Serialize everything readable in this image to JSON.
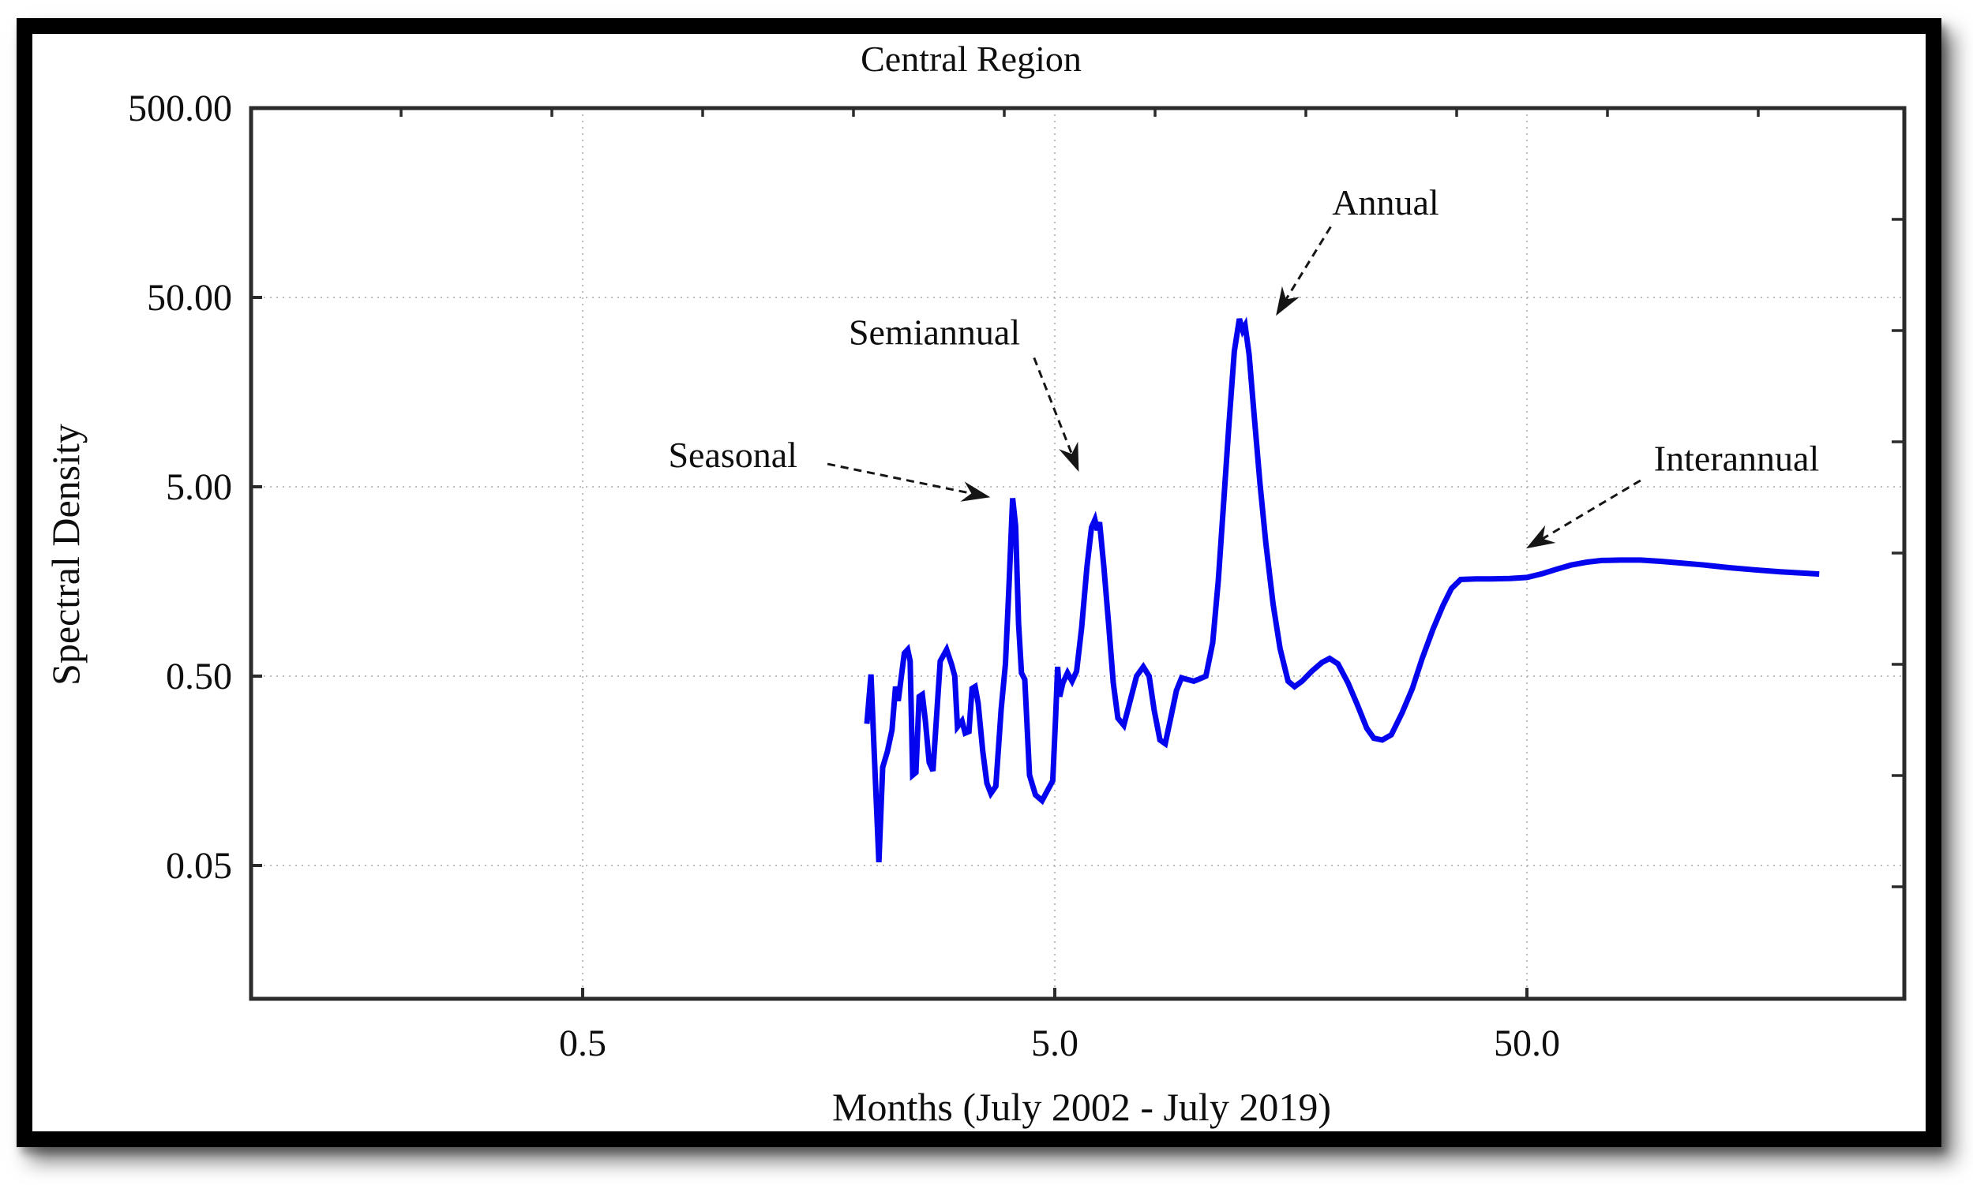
{
  "chart": {
    "title": "Central Region",
    "xlabel": "Months (July 2002 - July 2019)",
    "ylabel": "Spectral Density"
  },
  "chart_data": {
    "type": "line",
    "title": "Central Region",
    "xlabel": "Months (July 2002 - July 2019)",
    "ylabel": "Spectral Density",
    "x_scale": "log",
    "y_scale": "log",
    "xlim": [
      0.1,
      316
    ],
    "ylim": [
      0.01,
      500
    ],
    "grid": true,
    "x_ticks": [
      0.5,
      5.0,
      50.0
    ],
    "x_tick_labels": [
      "0.5",
      "5.0",
      "50.0"
    ],
    "y_ticks": [
      500,
      50,
      5,
      0.5,
      0.05
    ],
    "y_tick_labels": [
      "500.00",
      "50.00",
      "5.00",
      "0.50",
      "0.05"
    ],
    "line_color": "#0404ee",
    "series": [
      {
        "name": "spectral-density",
        "points": [
          [
            2.0,
            0.28
          ],
          [
            2.04,
            0.51
          ],
          [
            2.07,
            0.21
          ],
          [
            2.12,
            0.052
          ],
          [
            2.16,
            0.165
          ],
          [
            2.21,
            0.2
          ],
          [
            2.26,
            0.26
          ],
          [
            2.3,
            0.44
          ],
          [
            2.33,
            0.37
          ],
          [
            2.4,
            0.66
          ],
          [
            2.44,
            0.69
          ],
          [
            2.47,
            0.6
          ],
          [
            2.5,
            0.15
          ],
          [
            2.54,
            0.155
          ],
          [
            2.58,
            0.39
          ],
          [
            2.62,
            0.4
          ],
          [
            2.66,
            0.29
          ],
          [
            2.71,
            0.175
          ],
          [
            2.76,
            0.158
          ],
          [
            2.86,
            0.6
          ],
          [
            2.95,
            0.69
          ],
          [
            3.02,
            0.58
          ],
          [
            3.07,
            0.5
          ],
          [
            3.11,
            0.27
          ],
          [
            3.18,
            0.29
          ],
          [
            3.23,
            0.25
          ],
          [
            3.29,
            0.255
          ],
          [
            3.34,
            0.43
          ],
          [
            3.39,
            0.44
          ],
          [
            3.44,
            0.36
          ],
          [
            3.52,
            0.2
          ],
          [
            3.59,
            0.136
          ],
          [
            3.66,
            0.12
          ],
          [
            3.75,
            0.131
          ],
          [
            3.85,
            0.335
          ],
          [
            3.93,
            0.58
          ],
          [
            4.0,
            1.5
          ],
          [
            4.07,
            4.35
          ],
          [
            4.13,
            3.1
          ],
          [
            4.19,
            0.95
          ],
          [
            4.25,
            0.52
          ],
          [
            4.32,
            0.48
          ],
          [
            4.42,
            0.15
          ],
          [
            4.55,
            0.118
          ],
          [
            4.7,
            0.11
          ],
          [
            4.83,
            0.125
          ],
          [
            4.95,
            0.14
          ],
          [
            5.02,
            0.3
          ],
          [
            5.07,
            0.56
          ],
          [
            5.12,
            0.39
          ],
          [
            5.2,
            0.46
          ],
          [
            5.32,
            0.52
          ],
          [
            5.44,
            0.47
          ],
          [
            5.56,
            0.53
          ],
          [
            5.7,
            0.9
          ],
          [
            5.85,
            1.9
          ],
          [
            5.98,
            3.05
          ],
          [
            6.08,
            3.35
          ],
          [
            6.15,
            2.95
          ],
          [
            6.22,
            3.25
          ],
          [
            6.35,
            1.9
          ],
          [
            6.5,
            0.95
          ],
          [
            6.65,
            0.46
          ],
          [
            6.8,
            0.3
          ],
          [
            7.0,
            0.275
          ],
          [
            7.2,
            0.36
          ],
          [
            7.45,
            0.5
          ],
          [
            7.7,
            0.56
          ],
          [
            7.92,
            0.5
          ],
          [
            8.12,
            0.33
          ],
          [
            8.35,
            0.23
          ],
          [
            8.57,
            0.22
          ],
          [
            8.8,
            0.3
          ],
          [
            9.05,
            0.42
          ],
          [
            9.28,
            0.49
          ],
          [
            9.55,
            0.48
          ],
          [
            9.85,
            0.47
          ],
          [
            10.15,
            0.485
          ],
          [
            10.45,
            0.5
          ],
          [
            10.8,
            0.75
          ],
          [
            11.1,
            1.6
          ],
          [
            11.4,
            4.2
          ],
          [
            11.7,
            11
          ],
          [
            12.0,
            26
          ],
          [
            12.3,
            38.5
          ],
          [
            12.5,
            33.5
          ],
          [
            12.65,
            35.5
          ],
          [
            12.9,
            25
          ],
          [
            13.2,
            12.5
          ],
          [
            13.6,
            5.2
          ],
          [
            14.0,
            2.5
          ],
          [
            14.5,
            1.2
          ],
          [
            15.0,
            0.7
          ],
          [
            15.6,
            0.47
          ],
          [
            16.1,
            0.44
          ],
          [
            16.7,
            0.47
          ],
          [
            17.5,
            0.53
          ],
          [
            18.4,
            0.59
          ],
          [
            19.1,
            0.62
          ],
          [
            19.9,
            0.58
          ],
          [
            20.9,
            0.46
          ],
          [
            21.9,
            0.35
          ],
          [
            22.9,
            0.265
          ],
          [
            23.7,
            0.235
          ],
          [
            24.7,
            0.23
          ],
          [
            25.8,
            0.245
          ],
          [
            27.2,
            0.32
          ],
          [
            28.6,
            0.43
          ],
          [
            30.0,
            0.62
          ],
          [
            31.6,
            0.88
          ],
          [
            33.2,
            1.18
          ],
          [
            34.6,
            1.45
          ],
          [
            36.2,
            1.62
          ],
          [
            39,
            1.63
          ],
          [
            42,
            1.63
          ],
          [
            46,
            1.64
          ],
          [
            50,
            1.66
          ],
          [
            54,
            1.74
          ],
          [
            58,
            1.84
          ],
          [
            62,
            1.93
          ],
          [
            67,
            2.0
          ],
          [
            72,
            2.04
          ],
          [
            79,
            2.05
          ],
          [
            87,
            2.05
          ],
          [
            96,
            2.02
          ],
          [
            106,
            1.98
          ],
          [
            119,
            1.93
          ],
          [
            134,
            1.87
          ],
          [
            152,
            1.82
          ],
          [
            172,
            1.78
          ],
          [
            192,
            1.75
          ],
          [
            208,
            1.73
          ]
        ]
      }
    ],
    "annotations": [
      {
        "label": "Seasonal",
        "text_x": 1.04,
        "text_y": 7.4,
        "arrow_from_x": 1.65,
        "arrow_from_y": 6.6,
        "arrow_to_x": 3.65,
        "arrow_to_y": 4.4
      },
      {
        "label": "Semiannual",
        "text_x": 2.78,
        "text_y": 33,
        "arrow_from_x": 4.52,
        "arrow_from_y": 24,
        "arrow_to_x": 5.62,
        "arrow_to_y": 6.0
      },
      {
        "label": "Annual",
        "text_x": 25.1,
        "text_y": 160,
        "arrow_from_x": 19.2,
        "arrow_from_y": 118,
        "arrow_to_x": 14.7,
        "arrow_to_y": 40
      },
      {
        "label": "Interannual",
        "text_x": 139,
        "text_y": 7.1,
        "arrow_from_x": 87,
        "arrow_from_y": 5.4,
        "arrow_to_x": 49.8,
        "arrow_to_y": 2.36
      }
    ]
  }
}
